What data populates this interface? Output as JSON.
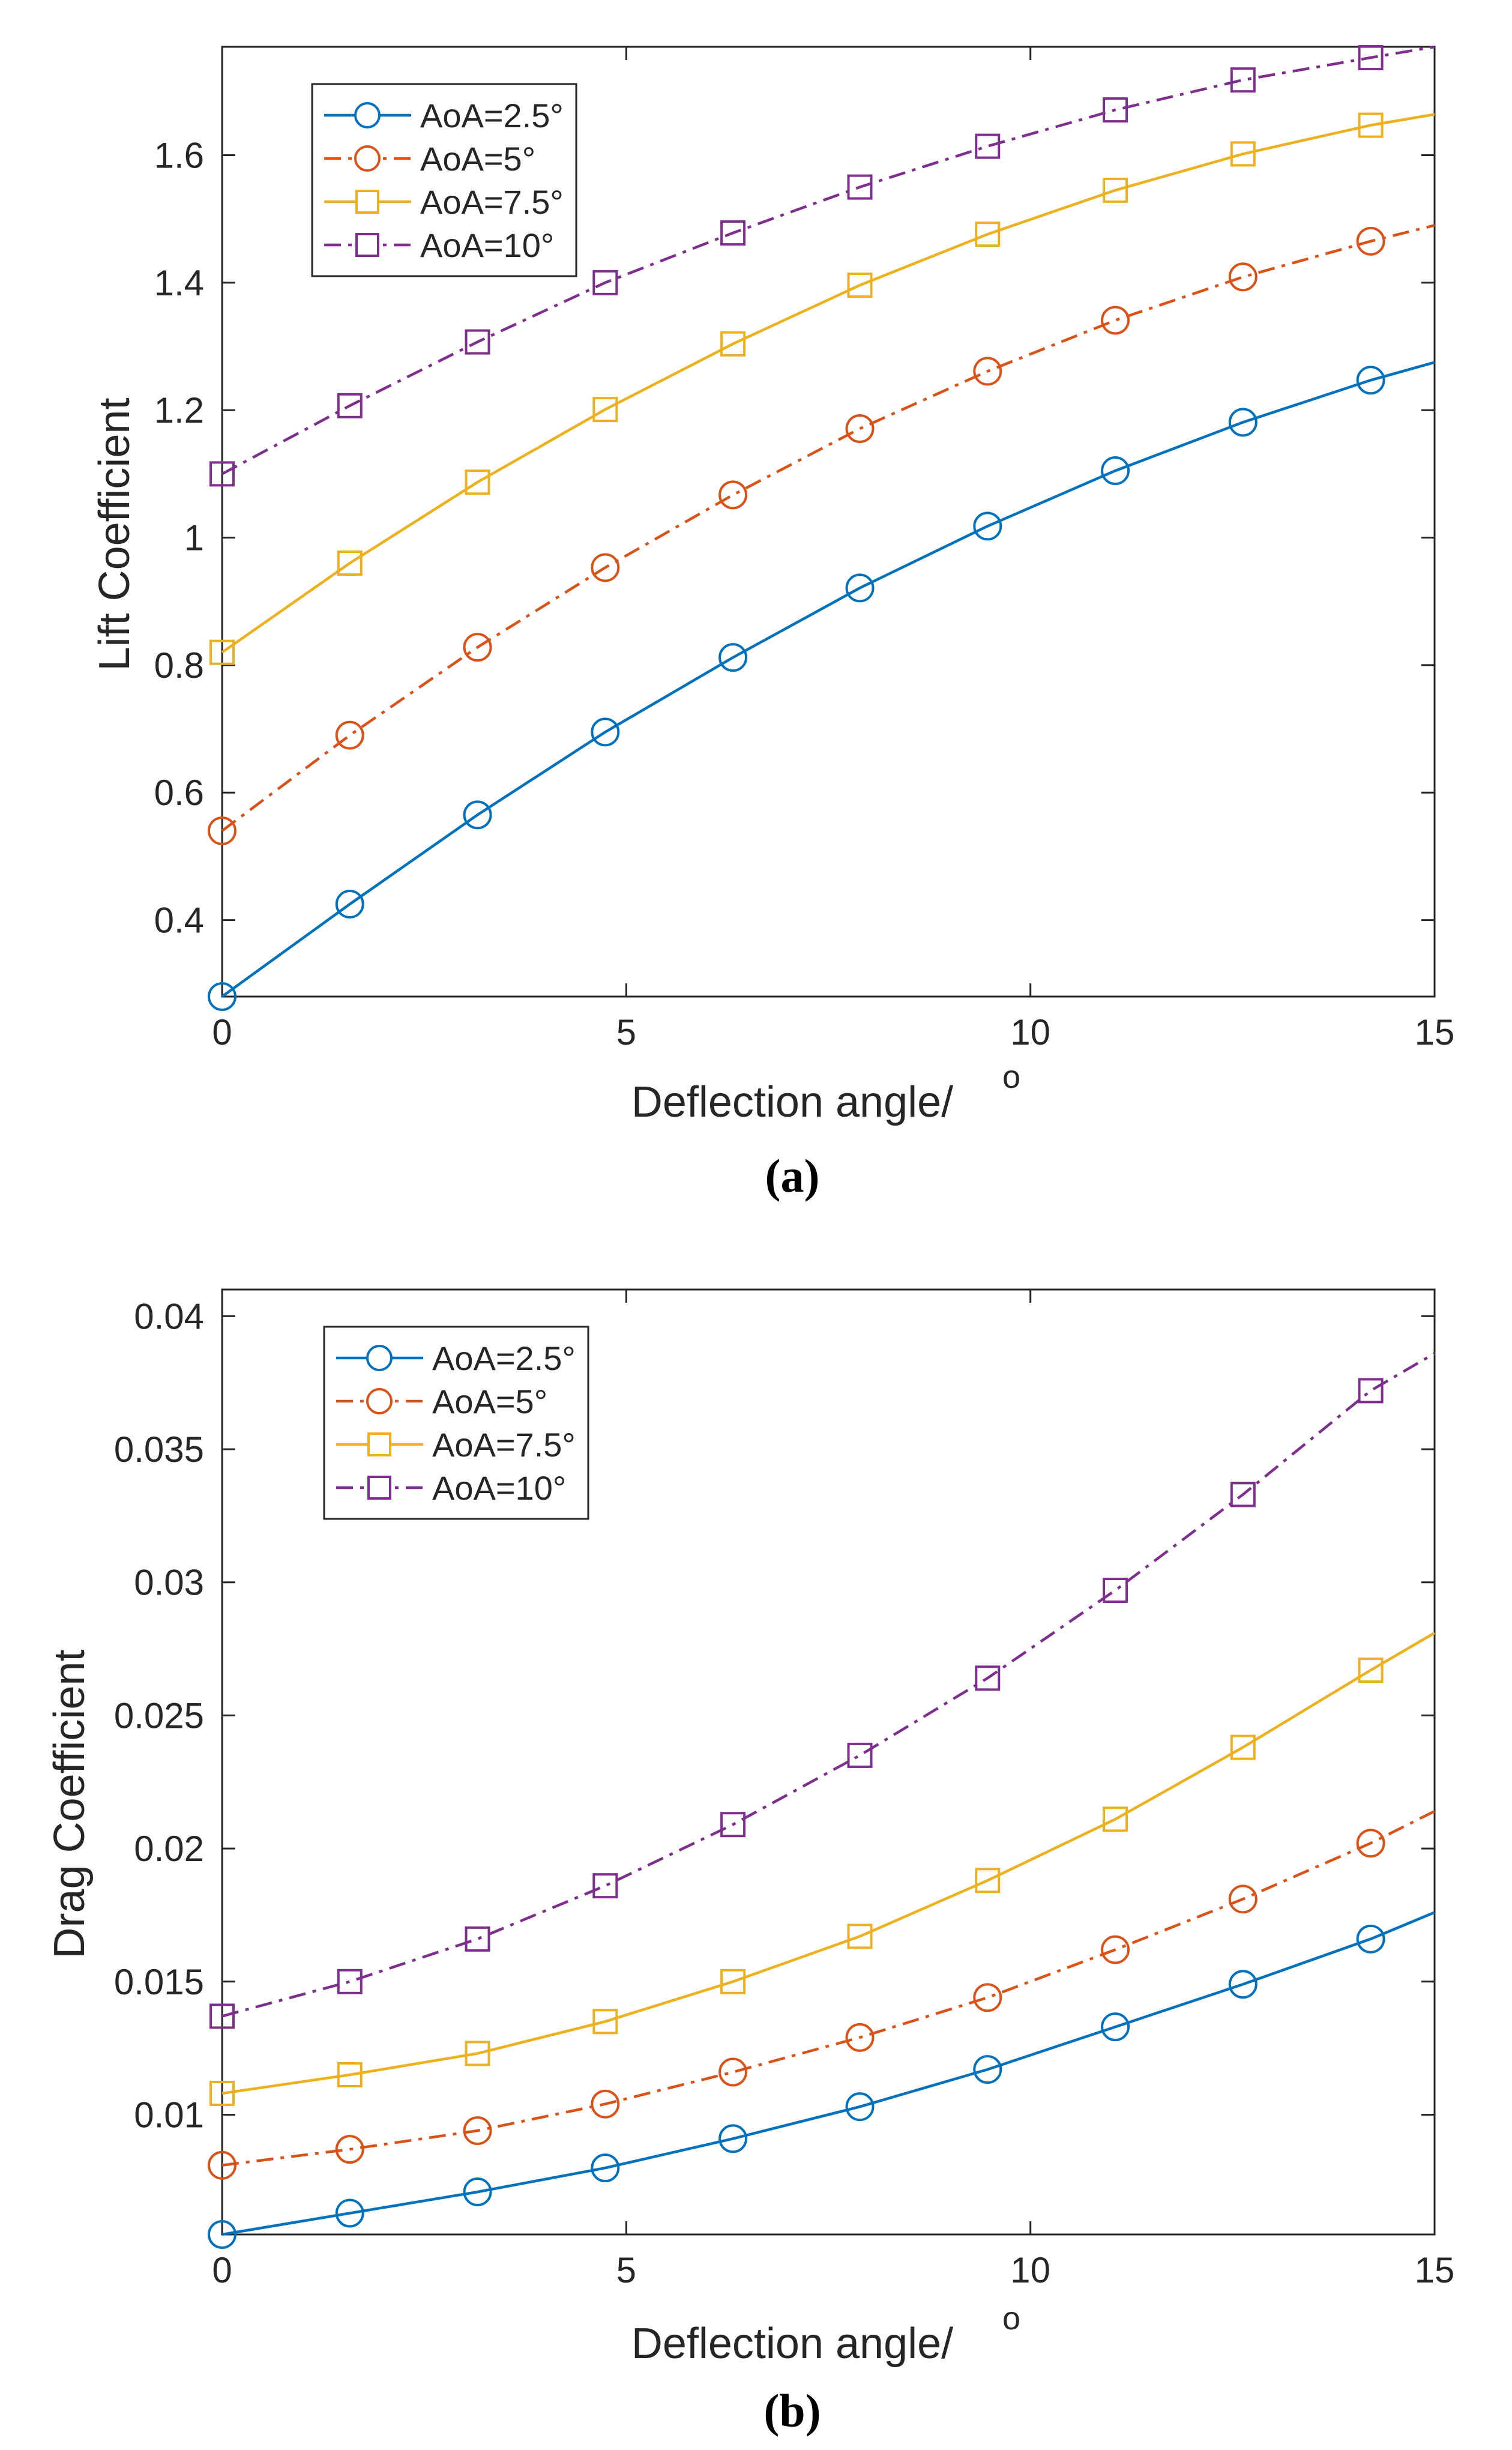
{
  "chart_data": [
    {
      "type": "line",
      "panel": "a",
      "caption": "(a)",
      "xlabel": "Deflection angle/ o",
      "ylabel": "Lift Coefficient",
      "xlim": [
        0,
        15
      ],
      "ylim": [
        0.28,
        1.77
      ],
      "xticks": [
        0,
        5,
        10,
        15
      ],
      "yticks": [
        0.4,
        0.6,
        0.8,
        1,
        1.2,
        1.4,
        1.6
      ],
      "grid": false,
      "legend_position": "top-left",
      "series": [
        {
          "name": "AoA=2.5°",
          "color": "#0072BD",
          "dash": "solid",
          "marker": "circle",
          "x": [
            0,
            1.58,
            3.16,
            4.74,
            6.32,
            7.89,
            9.47,
            11.05,
            12.63,
            14.21
          ],
          "y": [
            0.28,
            0.425,
            0.565,
            0.695,
            0.812,
            0.921,
            1.018,
            1.105,
            1.181,
            1.247
          ],
          "x_end": 15,
          "y_end": 1.275
        },
        {
          "name": "AoA=5°",
          "color": "#D95319",
          "dash": "dashdot",
          "marker": "circle",
          "x": [
            0,
            1.58,
            3.16,
            4.74,
            6.32,
            7.89,
            9.47,
            11.05,
            12.63,
            14.21
          ],
          "y": [
            0.54,
            0.69,
            0.828,
            0.953,
            1.067,
            1.171,
            1.261,
            1.341,
            1.409,
            1.465
          ],
          "x_end": 15,
          "y_end": 1.49
        },
        {
          "name": "AoA=7.5°",
          "color": "#EDB120",
          "dash": "solid",
          "marker": "square",
          "x": [
            0,
            1.58,
            3.16,
            4.74,
            6.32,
            7.89,
            9.47,
            11.05,
            12.63,
            14.21
          ],
          "y": [
            0.82,
            0.96,
            1.087,
            1.201,
            1.304,
            1.396,
            1.476,
            1.545,
            1.602,
            1.647
          ],
          "x_end": 15,
          "y_end": 1.664
        },
        {
          "name": "AoA=10°",
          "color": "#7E2F8E",
          "dash": "dashdot",
          "marker": "square",
          "x": [
            0,
            1.58,
            3.16,
            4.74,
            6.32,
            7.89,
            9.47,
            11.05,
            12.63,
            14.21
          ],
          "y": [
            1.1,
            1.207,
            1.307,
            1.4,
            1.478,
            1.55,
            1.614,
            1.671,
            1.718,
            1.753
          ],
          "x_end": 15,
          "y_end": 1.77
        }
      ]
    },
    {
      "type": "line",
      "panel": "b",
      "caption": "(b)",
      "xlabel": "Deflection angle/ o",
      "ylabel": "Drag Coefficient",
      "xlim": [
        0,
        15
      ],
      "ylim": [
        0.0055,
        0.041
      ],
      "xticks": [
        0,
        5,
        10,
        15
      ],
      "yticks": [
        0.01,
        0.015,
        0.02,
        0.025,
        0.03,
        0.035,
        0.04
      ],
      "grid": false,
      "legend_position": "top-left",
      "series": [
        {
          "name": "AoA=2.5°",
          "color": "#0072BD",
          "dash": "solid",
          "marker": "circle",
          "x": [
            0,
            1.58,
            3.16,
            4.74,
            6.32,
            7.89,
            9.47,
            11.05,
            12.63,
            14.21
          ],
          "y": [
            0.0055,
            0.0063,
            0.0071,
            0.008,
            0.0091,
            0.0103,
            0.0117,
            0.0133,
            0.0149,
            0.0166
          ],
          "x_end": 15,
          "y_end": 0.0176
        },
        {
          "name": "AoA=5°",
          "color": "#D95319",
          "dash": "dashdot",
          "marker": "circle",
          "x": [
            0,
            1.58,
            3.16,
            4.74,
            6.32,
            7.89,
            9.47,
            11.05,
            12.63,
            14.21
          ],
          "y": [
            0.0081,
            0.0087,
            0.0094,
            0.0104,
            0.0116,
            0.0129,
            0.0144,
            0.0162,
            0.0181,
            0.0202
          ],
          "x_end": 15,
          "y_end": 0.0214
        },
        {
          "name": "AoA=7.5°",
          "color": "#EDB120",
          "dash": "solid",
          "marker": "square",
          "x": [
            0,
            1.58,
            3.16,
            4.74,
            6.32,
            7.89,
            9.47,
            11.05,
            12.63,
            14.21
          ],
          "y": [
            0.0108,
            0.0115,
            0.0123,
            0.0135,
            0.015,
            0.0167,
            0.0188,
            0.0211,
            0.0238,
            0.0267
          ],
          "x_end": 15,
          "y_end": 0.0281
        },
        {
          "name": "AoA=10°",
          "color": "#7E2F8E",
          "dash": "dashdot",
          "marker": "square",
          "x": [
            0,
            1.58,
            3.16,
            4.74,
            6.32,
            7.89,
            9.47,
            11.05,
            12.63,
            14.21
          ],
          "y": [
            0.0137,
            0.015,
            0.0166,
            0.0186,
            0.0209,
            0.0235,
            0.0264,
            0.0297,
            0.0333,
            0.0372
          ],
          "x_end": 15,
          "y_end": 0.0386
        }
      ]
    }
  ]
}
